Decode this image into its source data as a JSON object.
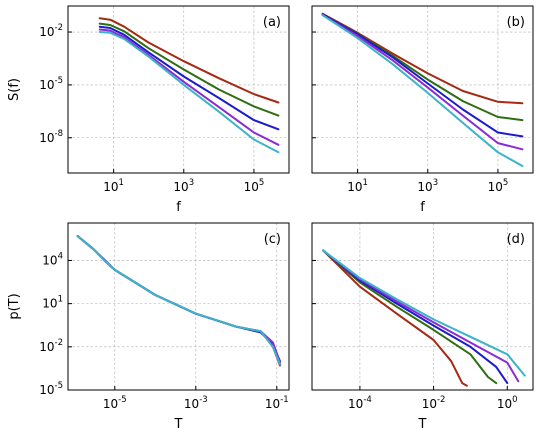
{
  "chart_data": [
    {
      "type": "line",
      "panel_label": "(a)",
      "xlabel": "f",
      "ylabel": "S(f)",
      "xscale": "log",
      "yscale": "log",
      "xlim": [
        0.5,
        1000000
      ],
      "ylim": [
        1e-10,
        0.3
      ],
      "xticks": [
        {
          "exp": "1",
          "v": 10
        },
        {
          "exp": "3",
          "v": 1000
        },
        {
          "exp": "5",
          "v": 100000
        }
      ],
      "yticks": [
        {
          "exp": "-2",
          "v": 0.01
        },
        {
          "exp": "-5",
          "v": 1e-05
        },
        {
          "exp": "-8",
          "v": 1e-08
        }
      ],
      "grid": true,
      "series": [
        {
          "color": "#a52a14",
          "points": [
            [
              4,
              0.06
            ],
            [
              8,
              0.05
            ],
            [
              20,
              0.02
            ],
            [
              100,
              0.0025
            ],
            [
              1000,
              0.00022
            ],
            [
              10000,
              2.4e-05
            ],
            [
              100000,
              3e-06
            ],
            [
              500000,
              1e-06
            ]
          ]
        },
        {
          "color": "#2e6e12",
          "points": [
            [
              4,
              0.03
            ],
            [
              8,
              0.025
            ],
            [
              20,
              0.011
            ],
            [
              100,
              0.0012
            ],
            [
              1000,
              7.5e-05
            ],
            [
              10000,
              5.5e-06
            ],
            [
              100000,
              6e-07
            ],
            [
              500000,
              1.8e-07
            ]
          ]
        },
        {
          "color": "#1c1ccc",
          "points": [
            [
              4,
              0.02
            ],
            [
              8,
              0.017
            ],
            [
              20,
              0.007
            ],
            [
              100,
              0.0007
            ],
            [
              1000,
              3e-05
            ],
            [
              10000,
              1.8e-06
            ],
            [
              100000,
              1e-07
            ],
            [
              500000,
              3e-08
            ]
          ]
        },
        {
          "color": "#8a2bd6",
          "points": [
            [
              4,
              0.014
            ],
            [
              8,
              0.012
            ],
            [
              20,
              0.005
            ],
            [
              100,
              0.0005
            ],
            [
              1000,
              1.5e-05
            ],
            [
              10000,
              5.5e-07
            ],
            [
              100000,
              2e-08
            ],
            [
              500000,
              4e-09
            ]
          ]
        },
        {
          "color": "#3ab4c8",
          "points": [
            [
              4,
              0.01
            ],
            [
              8,
              0.009
            ],
            [
              20,
              0.004
            ],
            [
              100,
              0.0004
            ],
            [
              1000,
              1e-05
            ],
            [
              10000,
              3e-07
            ],
            [
              100000,
              8e-09
            ],
            [
              500000,
              1.5e-09
            ]
          ]
        }
      ]
    },
    {
      "type": "line",
      "panel_label": "(b)",
      "xlabel": "f",
      "ylabel": "",
      "xscale": "log",
      "yscale": "log",
      "xlim": [
        0.5,
        1000000
      ],
      "ylim": [
        1e-10,
        0.3
      ],
      "xticks": [
        {
          "exp": "1",
          "v": 10
        },
        {
          "exp": "3",
          "v": 1000
        },
        {
          "exp": "5",
          "v": 100000
        }
      ],
      "yticks": [
        {
          "exp": "-2",
          "v": 0.01
        },
        {
          "exp": "-5",
          "v": 1e-05
        },
        {
          "exp": "-8",
          "v": 1e-08
        }
      ],
      "show_ytick_labels": false,
      "grid": true,
      "series": [
        {
          "color": "#a52a14",
          "points": [
            [
              1,
              0.11
            ],
            [
              10,
              0.009
            ],
            [
              100,
              0.0006
            ],
            [
              1000,
              4.5e-05
            ],
            [
              10000,
              4.5e-06
            ],
            [
              100000,
              1.1e-06
            ],
            [
              500000,
              9e-07
            ]
          ]
        },
        {
          "color": "#2e6e12",
          "points": [
            [
              1,
              0.1
            ],
            [
              10,
              0.008
            ],
            [
              100,
              0.00045
            ],
            [
              1000,
              2e-05
            ],
            [
              10000,
              1.2e-06
            ],
            [
              100000,
              1.5e-07
            ],
            [
              500000,
              1e-07
            ]
          ]
        },
        {
          "color": "#1c1ccc",
          "points": [
            [
              1,
              0.1
            ],
            [
              10,
              0.0075
            ],
            [
              100,
              0.00037
            ],
            [
              1000,
              1.2e-05
            ],
            [
              10000,
              4e-07
            ],
            [
              100000,
              2e-08
            ],
            [
              500000,
              1.2e-08
            ]
          ]
        },
        {
          "color": "#8a2bd6",
          "points": [
            [
              1,
              0.09
            ],
            [
              10,
              0.006
            ],
            [
              100,
              0.00025
            ],
            [
              1000,
              7e-06
            ],
            [
              10000,
              1.8e-07
            ],
            [
              100000,
              5e-09
            ],
            [
              500000,
              2.2e-09
            ]
          ]
        },
        {
          "color": "#3ab4c8",
          "points": [
            [
              1,
              0.09
            ],
            [
              10,
              0.0045
            ],
            [
              100,
              0.00015
            ],
            [
              1000,
              3.5e-06
            ],
            [
              10000,
              7e-08
            ],
            [
              100000,
              1.5e-09
            ],
            [
              500000,
              2.5e-10
            ]
          ]
        }
      ]
    },
    {
      "type": "line",
      "panel_label": "(c)",
      "xlabel": "T",
      "ylabel": "p(T)",
      "xscale": "log",
      "yscale": "log",
      "xlim": [
        7e-07,
        0.2
      ],
      "ylim": [
        1e-05,
        4000000
      ],
      "xticks": [
        {
          "exp": "-5",
          "v": 1e-05
        },
        {
          "exp": "-3",
          "v": 0.001
        },
        {
          "exp": "-1",
          "v": 0.1
        }
      ],
      "yticks": [
        {
          "exp": "4",
          "v": 10000
        },
        {
          "exp": "1",
          "v": 10
        },
        {
          "exp": "-2",
          "v": 0.01
        },
        {
          "exp": "-5",
          "v": 1e-05
        }
      ],
      "grid": true,
      "series": [
        {
          "color": "#a52a14",
          "points": [
            [
              1.2e-06,
              500000
            ],
            [
              3e-06,
              60000
            ],
            [
              6e-06,
              8000
            ],
            [
              1e-05,
              2200
            ],
            [
              0.0001,
              40
            ],
            [
              0.001,
              2
            ],
            [
              0.01,
              0.25
            ],
            [
              0.04,
              0.12
            ],
            [
              0.08,
              0.01
            ],
            [
              0.12,
              0.0005
            ]
          ]
        },
        {
          "color": "#2e6e12",
          "points": [
            [
              1.2e-06,
              500000
            ],
            [
              3e-06,
              60000
            ],
            [
              6e-06,
              8000
            ],
            [
              1e-05,
              2200
            ],
            [
              0.0001,
              40
            ],
            [
              0.001,
              2
            ],
            [
              0.01,
              0.25
            ],
            [
              0.04,
              0.12
            ],
            [
              0.08,
              0.012
            ],
            [
              0.12,
              0.0008
            ]
          ]
        },
        {
          "color": "#1c1ccc",
          "points": [
            [
              1.2e-06,
              500000
            ],
            [
              3e-06,
              60000
            ],
            [
              6e-06,
              9000
            ],
            [
              1e-05,
              2200
            ],
            [
              0.0001,
              40
            ],
            [
              0.001,
              2
            ],
            [
              0.01,
              0.25
            ],
            [
              0.04,
              0.1
            ],
            [
              0.08,
              0.015
            ],
            [
              0.12,
              0.001
            ]
          ]
        },
        {
          "color": "#8a2bd6",
          "points": [
            [
              1.2e-06,
              500000
            ],
            [
              3e-06,
              60000
            ],
            [
              6e-06,
              8000
            ],
            [
              1e-05,
              2200
            ],
            [
              0.0001,
              40
            ],
            [
              0.001,
              2
            ],
            [
              0.01,
              0.25
            ],
            [
              0.04,
              0.12
            ],
            [
              0.08,
              0.02
            ],
            [
              0.12,
              0.0008
            ]
          ]
        },
        {
          "color": "#3ab4c8",
          "points": [
            [
              1.2e-06,
              500000
            ],
            [
              3e-06,
              60000
            ],
            [
              6e-06,
              8000
            ],
            [
              1e-05,
              2200
            ],
            [
              0.0001,
              40
            ],
            [
              0.001,
              2
            ],
            [
              0.01,
              0.25
            ],
            [
              0.04,
              0.12
            ],
            [
              0.08,
              0.01
            ],
            [
              0.12,
              0.0006
            ]
          ]
        }
      ]
    },
    {
      "type": "line",
      "panel_label": "(d)",
      "xlabel": "T",
      "ylabel": "",
      "xscale": "log",
      "yscale": "log",
      "xlim": [
        5e-06,
        5
      ],
      "ylim": [
        1e-05,
        4000000
      ],
      "xticks": [
        {
          "exp": "-4",
          "v": 0.0001
        },
        {
          "exp": "-2",
          "v": 0.01
        },
        {
          "exp": "0",
          "v": 1
        }
      ],
      "yticks": [
        {
          "exp": "4",
          "v": 10000
        },
        {
          "exp": "1",
          "v": 10
        },
        {
          "exp": "-2",
          "v": 0.01
        },
        {
          "exp": "-5",
          "v": 1e-05
        }
      ],
      "show_ytick_labels": false,
      "grid": true,
      "series": [
        {
          "color": "#a52a14",
          "points": [
            [
              1e-05,
              50000
            ],
            [
              0.0001,
              150
            ],
            [
              0.001,
              2
            ],
            [
              0.01,
              0.03
            ],
            [
              0.03,
              0.001
            ],
            [
              0.06,
              3e-05
            ],
            [
              0.08,
              2e-05
            ]
          ]
        },
        {
          "color": "#2e6e12",
          "points": [
            [
              1e-05,
              50000
            ],
            [
              0.0001,
              300
            ],
            [
              0.001,
              6
            ],
            [
              0.01,
              0.15
            ],
            [
              0.1,
              0.003
            ],
            [
              0.3,
              8e-05
            ],
            [
              0.5,
              3e-05
            ]
          ]
        },
        {
          "color": "#1c1ccc",
          "points": [
            [
              1e-05,
              50000
            ],
            [
              0.0001,
              400
            ],
            [
              0.001,
              10
            ],
            [
              0.01,
              0.3
            ],
            [
              0.1,
              0.01
            ],
            [
              0.5,
              0.0004
            ],
            [
              1,
              3e-05
            ]
          ]
        },
        {
          "color": "#8a2bd6",
          "points": [
            [
              1e-05,
              50000
            ],
            [
              0.0001,
              500
            ],
            [
              0.001,
              14
            ],
            [
              0.01,
              0.5
            ],
            [
              0.1,
              0.02
            ],
            [
              1,
              0.0008
            ],
            [
              2,
              4e-05
            ]
          ]
        },
        {
          "color": "#3ab4c8",
          "points": [
            [
              1e-05,
              50000
            ],
            [
              0.0001,
              600
            ],
            [
              0.001,
              20
            ],
            [
              0.01,
              0.8
            ],
            [
              0.1,
              0.05
            ],
            [
              1,
              0.003
            ],
            [
              3,
              0.0001
            ]
          ]
        }
      ]
    }
  ]
}
